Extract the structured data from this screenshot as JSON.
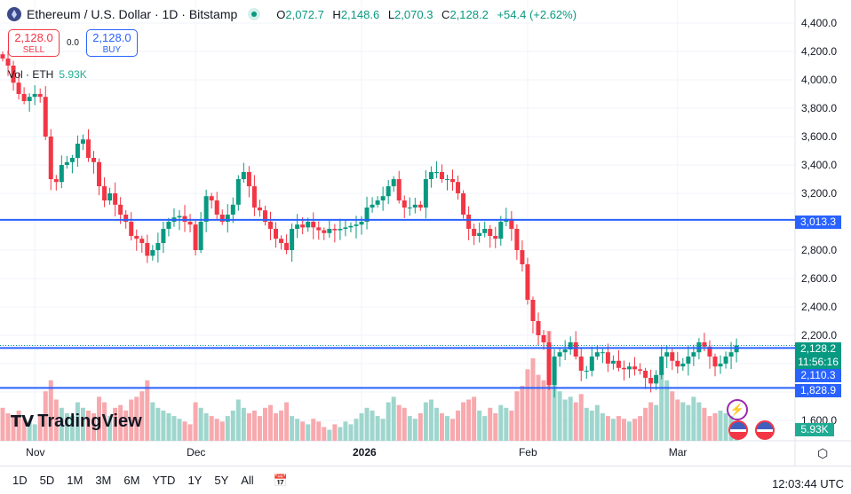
{
  "header": {
    "title": "Ethereum / U.S. Dollar · 1D · Bitstamp",
    "o_label": "O",
    "o": "2,072.7",
    "h_label": "H",
    "h": "2,148.6",
    "l_label": "L",
    "l": "2,070.3",
    "c_label": "C",
    "c": "2,128.2",
    "change": "+54.4 (+2.62%)"
  },
  "trade": {
    "sell_price": "2,128.0",
    "sell_label": "SELL",
    "spread": "0.0",
    "buy_price": "2,128.0",
    "buy_label": "BUY"
  },
  "volume": {
    "label": "Vol · ETH",
    "value": "5.93K"
  },
  "price_axis": [
    "4,400.0",
    "4,200.0",
    "4,000.0",
    "3,800.0",
    "3,600.0",
    "3,400.0",
    "3,200.0",
    "2,800.0",
    "2,600.0",
    "2,400.0",
    "2,200.0",
    "1,600.0"
  ],
  "price_axis_values": [
    4400,
    4200,
    4000,
    3800,
    3600,
    3400,
    3200,
    2800,
    2600,
    2400,
    2200,
    1600
  ],
  "tags": {
    "last": "2,128.2",
    "countdown": "11:56:16",
    "line1": "3,013.3",
    "line2": "2,110.3",
    "line3": "1,828.9",
    "vol": "5.93K"
  },
  "hlines": [
    3013.3,
    2110.3,
    1828.9
  ],
  "time_axis": [
    {
      "label": "Nov",
      "day": 6
    },
    {
      "label": "Dec",
      "day": 36
    },
    {
      "label": "2026",
      "day": 67
    },
    {
      "label": "Feb",
      "day": 98
    },
    {
      "label": "Mar",
      "day": 126
    }
  ],
  "logo": "TradingView",
  "toolbar": {
    "ranges": [
      "1D",
      "5D",
      "1M",
      "3M",
      "6M",
      "YTD",
      "1Y",
      "5Y",
      "All"
    ],
    "clock": "12:03:44 UTC"
  },
  "colors": {
    "up": "#089981",
    "down": "#f23645",
    "line": "#2962ff"
  },
  "chart_data": {
    "type": "candlestick",
    "first_open": 4180,
    "closes": [
      4150,
      4100,
      3980,
      3900,
      3850,
      3880,
      3900,
      3880,
      3600,
      3300,
      3280,
      3400,
      3420,
      3450,
      3550,
      3580,
      3450,
      3420,
      3250,
      3150,
      3200,
      3120,
      3050,
      3000,
      2900,
      2880,
      2850,
      2760,
      2800,
      2850,
      2950,
      3000,
      3030,
      3040,
      3000,
      2980,
      2800,
      3000,
      3180,
      3150,
      3050,
      3000,
      3050,
      3120,
      3300,
      3350,
      3250,
      3100,
      3080,
      3000,
      2950,
      2880,
      2850,
      2800,
      2950,
      2980,
      2960,
      3000,
      2960,
      2940,
      2920,
      2950,
      2940,
      2950,
      2960,
      2970,
      2980,
      3000,
      3100,
      3120,
      3150,
      3180,
      3250,
      3300,
      3150,
      3100,
      3100,
      3120,
      3100,
      3300,
      3350,
      3350,
      3300,
      3300,
      3280,
      3200,
      3050,
      2950,
      2900,
      2920,
      2950,
      2900,
      2880,
      3000,
      3020,
      2950,
      2800,
      2700,
      2450,
      2300,
      2200,
      2150,
      1850,
      2050,
      2080,
      2100,
      2150,
      2050,
      1950,
      1950,
      2050,
      2080,
      2080,
      2000,
      2020,
      1970,
      1960,
      1980,
      1960,
      1950,
      1900,
      1860,
      1920,
      2050,
      2080,
      2020,
      1980,
      2000,
      2050,
      2080,
      2150,
      2120,
      2050,
      1980,
      2000,
      2050,
      2080,
      2128.2
    ],
    "volumes_k": [
      12,
      10,
      9,
      11,
      8,
      7,
      6,
      9,
      18,
      22,
      15,
      12,
      10,
      9,
      14,
      12,
      11,
      10,
      16,
      14,
      9,
      12,
      13,
      11,
      15,
      16,
      18,
      22,
      14,
      12,
      11,
      10,
      9,
      8,
      7,
      6,
      14,
      12,
      10,
      9,
      8,
      7,
      9,
      11,
      15,
      12,
      10,
      11,
      9,
      12,
      13,
      10,
      11,
      14,
      9,
      8,
      7,
      6,
      8,
      7,
      5,
      4,
      6,
      5,
      7,
      6,
      8,
      10,
      12,
      11,
      9,
      8,
      14,
      16,
      13,
      12,
      9,
      8,
      10,
      14,
      15,
      12,
      10,
      9,
      8,
      11,
      14,
      15,
      16,
      11,
      9,
      12,
      10,
      13,
      12,
      11,
      18,
      20,
      26,
      30,
      24,
      22,
      40,
      28,
      18,
      15,
      16,
      14,
      17,
      12,
      11,
      13,
      10,
      9,
      8,
      9,
      8,
      7,
      8,
      9,
      12,
      14,
      13,
      25,
      22,
      18,
      15,
      14,
      13,
      16,
      14,
      12,
      9,
      10,
      11,
      10,
      9,
      6
    ]
  }
}
